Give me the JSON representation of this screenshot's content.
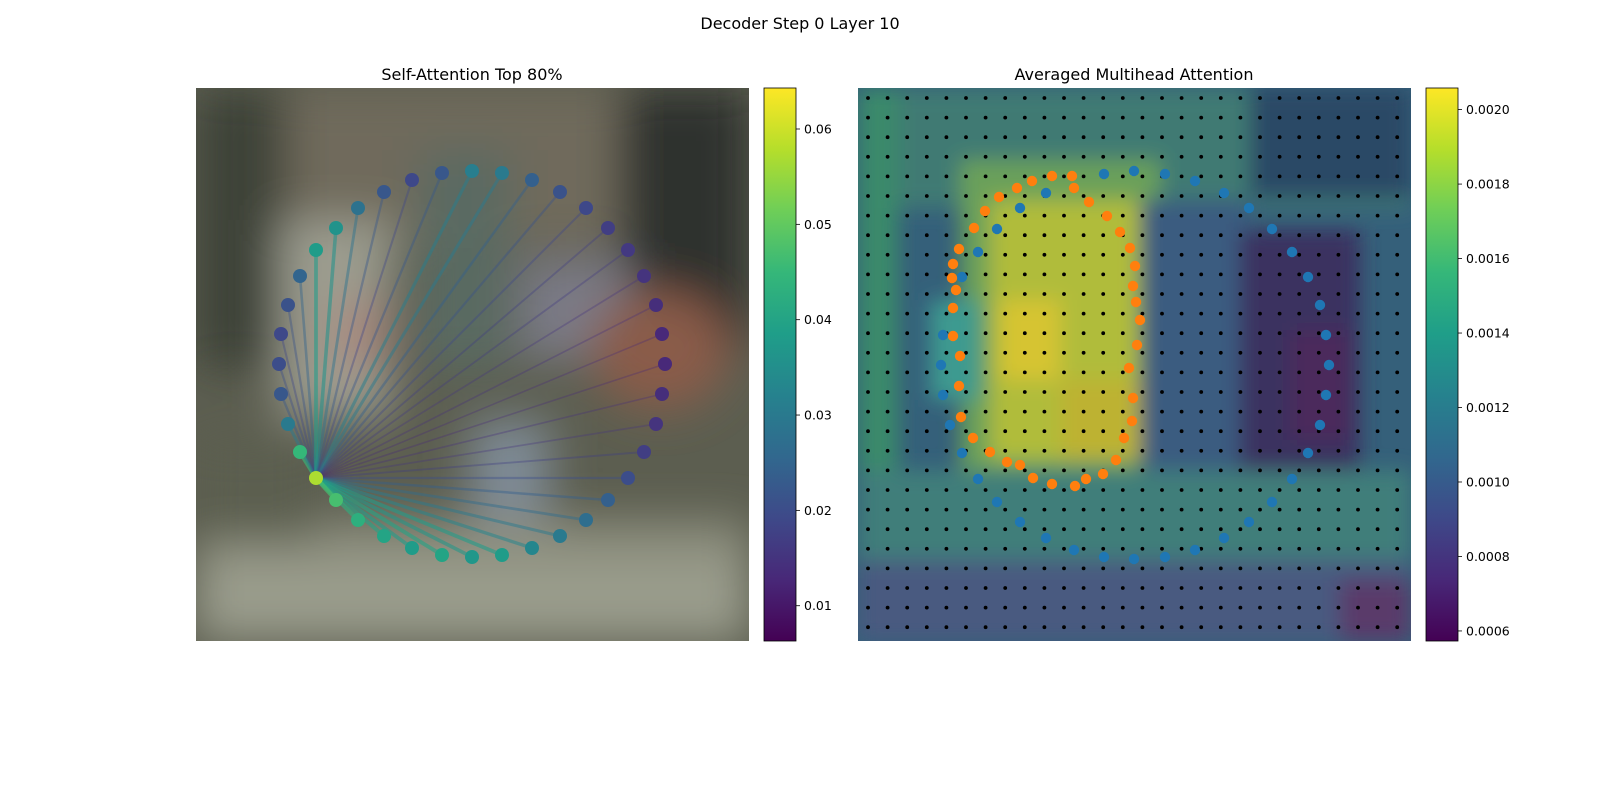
{
  "figure": {
    "suptitle": "Decoder Step 0 Layer 10"
  },
  "colors": {
    "viridis": [
      "#440154",
      "#482878",
      "#3e4989",
      "#31688e",
      "#26828e",
      "#1f9e89",
      "#35b779",
      "#6ece58",
      "#b5de2b",
      "#fde725"
    ],
    "blue_points": "#1f77b4",
    "orange_points": "#ff7f0e",
    "grid_dots": "#000000"
  },
  "chart_data": [
    {
      "type": "scatter",
      "title": "Self-Attention Top 80%",
      "background": "blurred photo of street scene (image)",
      "points": [
        {
          "x": 472,
          "y": 171,
          "v": 0.031
        },
        {
          "x": 502,
          "y": 173,
          "v": 0.03
        },
        {
          "x": 532,
          "y": 180,
          "v": 0.024
        },
        {
          "x": 560,
          "y": 192,
          "v": 0.021
        },
        {
          "x": 586,
          "y": 208,
          "v": 0.019
        },
        {
          "x": 608,
          "y": 228,
          "v": 0.017
        },
        {
          "x": 628,
          "y": 250,
          "v": 0.016
        },
        {
          "x": 644,
          "y": 276,
          "v": 0.015
        },
        {
          "x": 656,
          "y": 305,
          "v": 0.014
        },
        {
          "x": 662,
          "y": 334,
          "v": 0.013
        },
        {
          "x": 665,
          "y": 364,
          "v": 0.013
        },
        {
          "x": 662,
          "y": 394,
          "v": 0.014
        },
        {
          "x": 656,
          "y": 424,
          "v": 0.015
        },
        {
          "x": 644,
          "y": 452,
          "v": 0.017
        },
        {
          "x": 628,
          "y": 478,
          "v": 0.02
        },
        {
          "x": 608,
          "y": 500,
          "v": 0.024
        },
        {
          "x": 586,
          "y": 520,
          "v": 0.027
        },
        {
          "x": 560,
          "y": 536,
          "v": 0.03
        },
        {
          "x": 532,
          "y": 548,
          "v": 0.033
        },
        {
          "x": 502,
          "y": 555,
          "v": 0.038
        },
        {
          "x": 472,
          "y": 557,
          "v": 0.037
        },
        {
          "x": 442,
          "y": 555,
          "v": 0.04
        },
        {
          "x": 412,
          "y": 548,
          "v": 0.038
        },
        {
          "x": 384,
          "y": 536,
          "v": 0.04
        },
        {
          "x": 358,
          "y": 520,
          "v": 0.043
        },
        {
          "x": 336,
          "y": 500,
          "v": 0.047
        },
        {
          "x": 316,
          "y": 478,
          "v": 0.057
        },
        {
          "x": 300,
          "y": 452,
          "v": 0.045
        },
        {
          "x": 288,
          "y": 424,
          "v": 0.03
        },
        {
          "x": 281,
          "y": 394,
          "v": 0.022
        },
        {
          "x": 279,
          "y": 364,
          "v": 0.02
        },
        {
          "x": 281,
          "y": 334,
          "v": 0.019
        },
        {
          "x": 288,
          "y": 305,
          "v": 0.021
        },
        {
          "x": 300,
          "y": 276,
          "v": 0.025
        },
        {
          "x": 316,
          "y": 250,
          "v": 0.038
        },
        {
          "x": 336,
          "y": 228,
          "v": 0.036
        },
        {
          "x": 358,
          "y": 208,
          "v": 0.028
        },
        {
          "x": 384,
          "y": 192,
          "v": 0.022
        },
        {
          "x": 412,
          "y": 180,
          "v": 0.019
        },
        {
          "x": 442,
          "y": 173,
          "v": 0.022
        }
      ],
      "source_index": 26,
      "colorbar": {
        "ticks": [
          "0.01",
          "0.02",
          "0.03",
          "0.04",
          "0.05",
          "0.06"
        ],
        "tick_values": [
          0.01,
          0.02,
          0.03,
          0.04,
          0.05,
          0.06
        ],
        "vmin": 0.0063,
        "vmax": 0.0643
      }
    },
    {
      "type": "heatmap",
      "title": "Averaged Multihead Attention",
      "background": "blurred photo of street scene overlaid with attention heatmap",
      "blue_points": [
        {
          "x": 1134,
          "y": 171
        },
        {
          "x": 1165,
          "y": 174
        },
        {
          "x": 1195,
          "y": 181
        },
        {
          "x": 1224,
          "y": 193
        },
        {
          "x": 1249,
          "y": 208
        },
        {
          "x": 1272,
          "y": 229
        },
        {
          "x": 1292,
          "y": 252
        },
        {
          "x": 1308,
          "y": 277
        },
        {
          "x": 1320,
          "y": 305
        },
        {
          "x": 1326,
          "y": 335
        },
        {
          "x": 1329,
          "y": 365
        },
        {
          "x": 1326,
          "y": 395
        },
        {
          "x": 1320,
          "y": 425
        },
        {
          "x": 1308,
          "y": 453
        },
        {
          "x": 1292,
          "y": 479
        },
        {
          "x": 1272,
          "y": 502
        },
        {
          "x": 1249,
          "y": 522
        },
        {
          "x": 1224,
          "y": 538
        },
        {
          "x": 1195,
          "y": 550
        },
        {
          "x": 1165,
          "y": 557
        },
        {
          "x": 1134,
          "y": 559
        },
        {
          "x": 1104,
          "y": 557
        },
        {
          "x": 1074,
          "y": 550
        },
        {
          "x": 1046,
          "y": 538
        },
        {
          "x": 1020,
          "y": 522
        },
        {
          "x": 997,
          "y": 502
        },
        {
          "x": 978,
          "y": 479
        },
        {
          "x": 962,
          "y": 453
        },
        {
          "x": 950,
          "y": 425
        },
        {
          "x": 943,
          "y": 395
        },
        {
          "x": 941,
          "y": 365
        },
        {
          "x": 943,
          "y": 335
        },
        {
          "x": 962,
          "y": 277
        },
        {
          "x": 978,
          "y": 252
        },
        {
          "x": 997,
          "y": 229
        },
        {
          "x": 1020,
          "y": 208
        },
        {
          "x": 1046,
          "y": 193
        },
        {
          "x": 1104,
          "y": 174
        }
      ],
      "orange_points": [
        {
          "x": 1052,
          "y": 176
        },
        {
          "x": 1072,
          "y": 176
        },
        {
          "x": 1074,
          "y": 188
        },
        {
          "x": 1089,
          "y": 202
        },
        {
          "x": 1107,
          "y": 216
        },
        {
          "x": 1120,
          "y": 232
        },
        {
          "x": 1130,
          "y": 248
        },
        {
          "x": 1135,
          "y": 266
        },
        {
          "x": 1133,
          "y": 286
        },
        {
          "x": 1136,
          "y": 302
        },
        {
          "x": 1140,
          "y": 320
        },
        {
          "x": 1137,
          "y": 345
        },
        {
          "x": 1129,
          "y": 368
        },
        {
          "x": 1133,
          "y": 398
        },
        {
          "x": 1132,
          "y": 421
        },
        {
          "x": 1124,
          "y": 438
        },
        {
          "x": 1116,
          "y": 460
        },
        {
          "x": 1103,
          "y": 474
        },
        {
          "x": 1086,
          "y": 479
        },
        {
          "x": 1075,
          "y": 486
        },
        {
          "x": 1052,
          "y": 484
        },
        {
          "x": 1033,
          "y": 478
        },
        {
          "x": 1020,
          "y": 465
        },
        {
          "x": 1007,
          "y": 462
        },
        {
          "x": 990,
          "y": 452
        },
        {
          "x": 973,
          "y": 438
        },
        {
          "x": 961,
          "y": 417
        },
        {
          "x": 959,
          "y": 386
        },
        {
          "x": 960,
          "y": 356
        },
        {
          "x": 953,
          "y": 336
        },
        {
          "x": 953,
          "y": 308
        },
        {
          "x": 956,
          "y": 290
        },
        {
          "x": 952,
          "y": 278
        },
        {
          "x": 953,
          "y": 264
        },
        {
          "x": 959,
          "y": 249
        },
        {
          "x": 974,
          "y": 228
        },
        {
          "x": 985,
          "y": 211
        },
        {
          "x": 999,
          "y": 197
        },
        {
          "x": 1017,
          "y": 188
        },
        {
          "x": 1032,
          "y": 181
        }
      ],
      "colorbar": {
        "ticks": [
          "0.0006",
          "0.0008",
          "0.0010",
          "0.0012",
          "0.0014",
          "0.0016",
          "0.0018",
          "0.0020"
        ],
        "tick_values": [
          0.0006,
          0.0008,
          0.001,
          0.0012,
          0.0014,
          0.0016,
          0.0018,
          0.002
        ],
        "vmin": 0.000573,
        "vmax": 0.002058
      }
    }
  ]
}
